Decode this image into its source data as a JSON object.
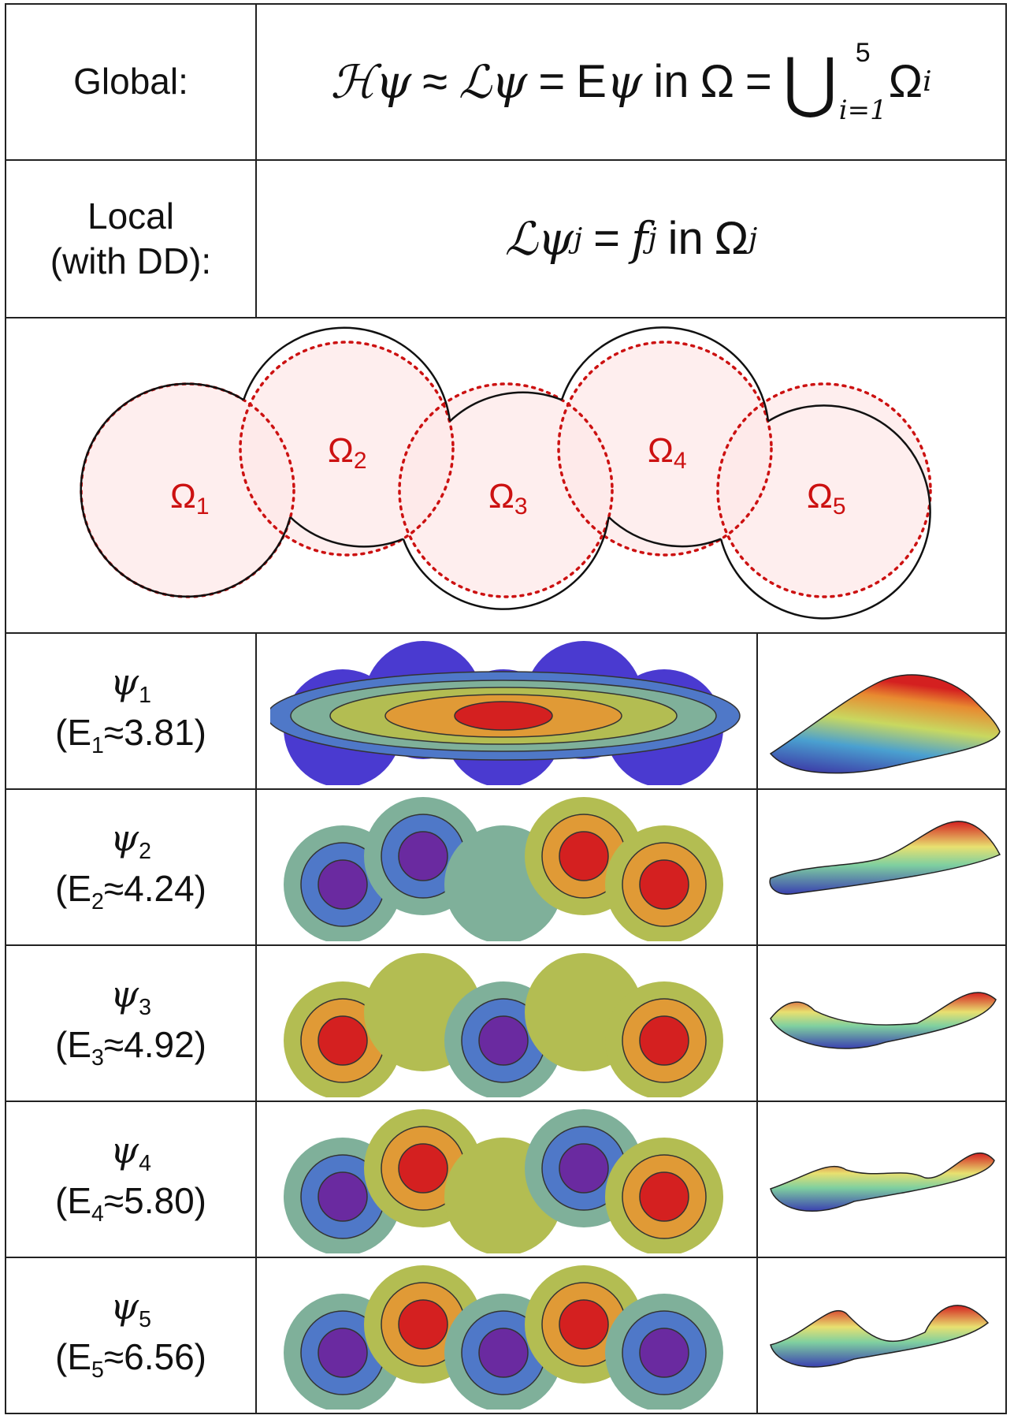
{
  "global": {
    "label": "Global:",
    "equation": {
      "H": "ℋ",
      "psi": "ψ",
      "approx": "≈",
      "L": "ℒ",
      "eq": "=",
      "E": "E",
      "in": "in",
      "Omega": "Ω",
      "union": "⋃",
      "union_lower": "i=1",
      "union_upper": "5",
      "sub_i": "i"
    }
  },
  "local": {
    "label_line1": "Local",
    "label_line2": "(with DD):",
    "equation": {
      "L": "ℒ",
      "psi": "ψ",
      "sub_j": "j",
      "eq": "=",
      "f": "f",
      "in": "in",
      "Omega": "Ω"
    }
  },
  "subdomains": [
    {
      "symbol": "Ω",
      "index": "1"
    },
    {
      "symbol": "Ω",
      "index": "2"
    },
    {
      "symbol": "Ω",
      "index": "3"
    },
    {
      "symbol": "Ω",
      "index": "4"
    },
    {
      "symbol": "Ω",
      "index": "5"
    }
  ],
  "colors": {
    "subdomain_fill": "#fde8e8",
    "subdomain_boundary": "#cc1111",
    "outline": "#111111",
    "red": "#d42020",
    "orange": "#e09a36",
    "yellow_green": "#b3bd52",
    "teal": "#7fb09a",
    "blue": "#4f78c8",
    "purple": "#6a2aa0",
    "dark_blue": "#4a3ad0"
  },
  "modes": [
    {
      "psi": "ψ",
      "index": "1",
      "E": "E",
      "approx": "≈",
      "energy": "3.81"
    },
    {
      "psi": "ψ",
      "index": "2",
      "E": "E",
      "approx": "≈",
      "energy": "4.24"
    },
    {
      "psi": "ψ",
      "index": "3",
      "E": "E",
      "approx": "≈",
      "energy": "4.92"
    },
    {
      "psi": "ψ",
      "index": "4",
      "E": "E",
      "approx": "≈",
      "energy": "5.80"
    },
    {
      "psi": "ψ",
      "index": "5",
      "E": "E",
      "approx": "≈",
      "energy": "6.56"
    }
  ]
}
